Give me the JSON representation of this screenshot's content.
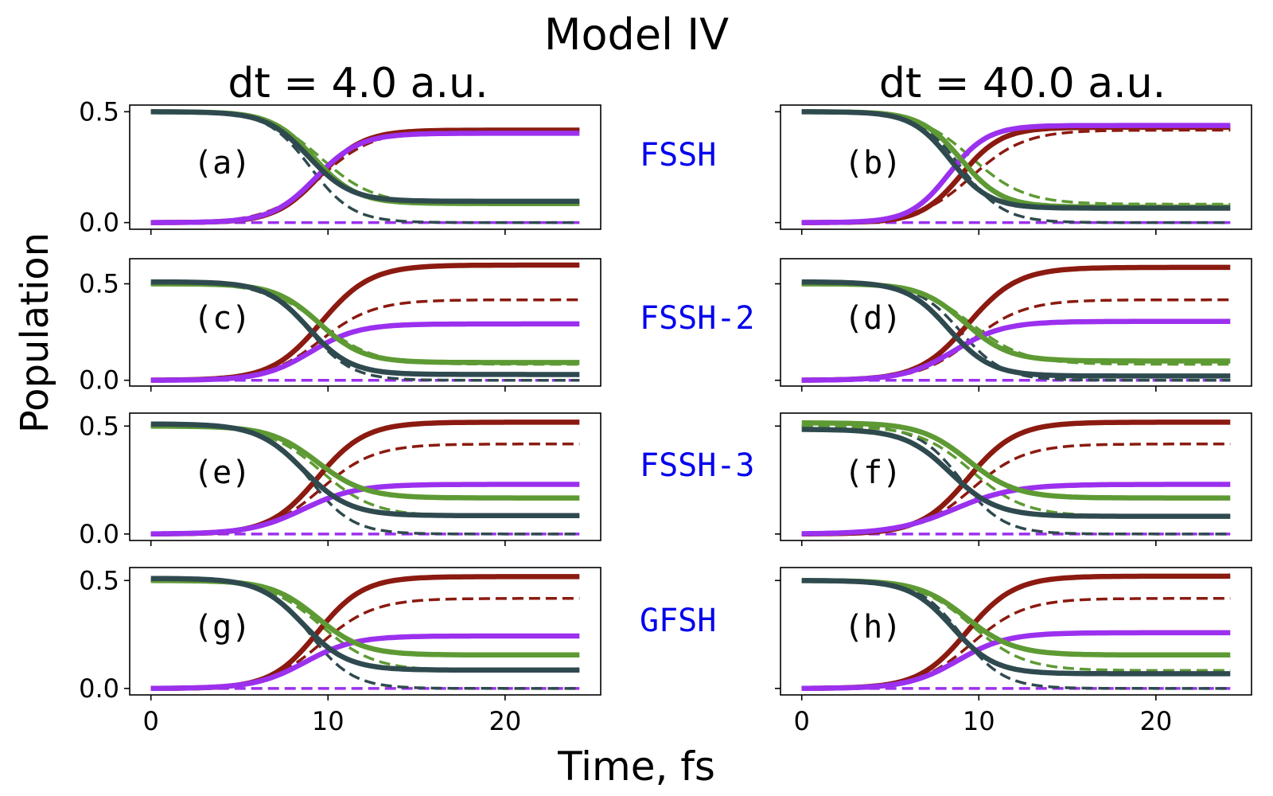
{
  "figure": {
    "title": "Model IV",
    "xlabel": "Time, fs",
    "ylabel": "Population",
    "columns": [
      "dt = 4.0 a.u.",
      "dt = 40.0 a.u."
    ],
    "method_labels": [
      "FSSH",
      "FSSH-2",
      "FSSH-3",
      "GFSH"
    ]
  },
  "colors": {
    "red": "#8b1a10",
    "purple": "#9b30ee",
    "green": "#5e9a34",
    "slate": "#2f4a4f",
    "method_label": "#0000ee"
  },
  "chart_data": [
    {
      "type": "line",
      "panel": "(a)",
      "method": "FSSH",
      "column": "dt = 4.0 a.u.",
      "xlim": [
        -1.2,
        25.4
      ],
      "ylim": [
        -0.03,
        0.53
      ],
      "xticks": [
        "0",
        "10",
        "20"
      ],
      "yticks": [
        "0.0",
        "0.5"
      ],
      "reference": {
        "red": [
          0,
          0.417
        ],
        "green": [
          0.5,
          0.083
        ],
        "purple": [
          0,
          0
        ],
        "slate": [
          0.5,
          0
        ]
      },
      "series": [
        {
          "color": "red",
          "style": "solid",
          "start": 0,
          "end": 0.417,
          "t0": 9.5,
          "tau": 1.25
        },
        {
          "color": "purple",
          "style": "solid",
          "start": 0,
          "end": 0.403,
          "t0": 9.3,
          "tau": 1.25
        },
        {
          "color": "green",
          "style": "solid",
          "start": 0.5,
          "end": 0.086,
          "t0": 9.2,
          "tau": 1.2
        },
        {
          "color": "slate",
          "style": "solid",
          "start": 0.5,
          "end": 0.096,
          "t0": 8.9,
          "tau": 1.2
        }
      ]
    },
    {
      "type": "line",
      "panel": "(b)",
      "method": "FSSH",
      "column": "dt = 40.0 a.u.",
      "xlim": [
        -1.2,
        25.4
      ],
      "ylim": [
        -0.03,
        0.53
      ],
      "xticks": [
        "0",
        "10",
        "20"
      ],
      "yticks": [
        "0.0",
        "0.5"
      ],
      "reference": {
        "red": [
          0,
          0.417
        ],
        "green": [
          0.5,
          0.083
        ],
        "purple": [
          0,
          0
        ],
        "slate": [
          0.5,
          0
        ]
      },
      "series": [
        {
          "color": "red",
          "style": "solid",
          "start": 0,
          "end": 0.43,
          "t0": 9.0,
          "tau": 1.15
        },
        {
          "color": "purple",
          "style": "solid",
          "start": 0,
          "end": 0.438,
          "t0": 8.3,
          "tau": 1.1
        },
        {
          "color": "green",
          "style": "solid",
          "start": 0.5,
          "end": 0.07,
          "t0": 9.0,
          "tau": 1.15
        },
        {
          "color": "slate",
          "style": "solid",
          "start": 0.5,
          "end": 0.065,
          "t0": 8.4,
          "tau": 1.1
        }
      ]
    },
    {
      "type": "line",
      "panel": "(c)",
      "method": "FSSH-2",
      "column": "dt = 4.0 a.u.",
      "xlim": [
        -1.2,
        25.4
      ],
      "ylim": [
        -0.03,
        0.63
      ],
      "xticks": [
        "0",
        "10",
        "20"
      ],
      "yticks": [
        "0.0",
        "0.5"
      ],
      "reference": {
        "red": [
          0,
          0.417
        ],
        "green": [
          0.5,
          0.083
        ],
        "purple": [
          0,
          0
        ],
        "slate": [
          0.5,
          0
        ]
      },
      "series": [
        {
          "color": "red",
          "style": "solid",
          "start": 0,
          "end": 0.597,
          "t0": 9.6,
          "tau": 1.4
        },
        {
          "color": "purple",
          "style": "solid",
          "start": 0,
          "end": 0.292,
          "t0": 9.0,
          "tau": 1.35
        },
        {
          "color": "green",
          "style": "solid",
          "start": 0.5,
          "end": 0.092,
          "t0": 9.5,
          "tau": 1.25
        },
        {
          "color": "slate",
          "style": "solid",
          "start": 0.51,
          "end": 0.03,
          "t0": 8.9,
          "tau": 1.2
        }
      ]
    },
    {
      "type": "line",
      "panel": "(d)",
      "method": "FSSH-2",
      "column": "dt = 40.0 a.u.",
      "xlim": [
        -1.2,
        25.4
      ],
      "ylim": [
        -0.03,
        0.63
      ],
      "xticks": [
        "0",
        "10",
        "20"
      ],
      "yticks": [
        "0.0",
        "0.5"
      ],
      "reference": {
        "red": [
          0,
          0.417
        ],
        "green": [
          0.5,
          0.083
        ],
        "purple": [
          0,
          0
        ],
        "slate": [
          0.5,
          0
        ]
      },
      "series": [
        {
          "color": "red",
          "style": "solid",
          "start": 0,
          "end": 0.585,
          "t0": 9.4,
          "tau": 1.4
        },
        {
          "color": "purple",
          "style": "solid",
          "start": 0,
          "end": 0.305,
          "t0": 8.6,
          "tau": 1.4
        },
        {
          "color": "green",
          "style": "solid",
          "start": 0.5,
          "end": 0.1,
          "t0": 9.2,
          "tau": 1.25
        },
        {
          "color": "slate",
          "style": "solid",
          "start": 0.51,
          "end": 0.022,
          "t0": 8.3,
          "tau": 1.2
        }
      ]
    },
    {
      "type": "line",
      "panel": "(e)",
      "method": "FSSH-3",
      "column": "dt = 4.0 a.u.",
      "xlim": [
        -1.2,
        25.4
      ],
      "ylim": [
        -0.03,
        0.56
      ],
      "xticks": [
        "0",
        "10",
        "20"
      ],
      "yticks": [
        "0.0",
        "0.5"
      ],
      "reference": {
        "red": [
          0,
          0.417
        ],
        "green": [
          0.5,
          0.083
        ],
        "purple": [
          0,
          0
        ],
        "slate": [
          0.5,
          0
        ]
      },
      "series": [
        {
          "color": "red",
          "style": "solid",
          "start": 0,
          "end": 0.518,
          "t0": 9.4,
          "tau": 1.35
        },
        {
          "color": "purple",
          "style": "solid",
          "start": 0,
          "end": 0.23,
          "t0": 8.6,
          "tau": 1.5
        },
        {
          "color": "green",
          "style": "solid",
          "start": 0.5,
          "end": 0.167,
          "t0": 9.4,
          "tau": 1.35
        },
        {
          "color": "slate",
          "style": "solid",
          "start": 0.51,
          "end": 0.085,
          "t0": 8.6,
          "tau": 1.3
        }
      ]
    },
    {
      "type": "line",
      "panel": "(f)",
      "method": "FSSH-3",
      "column": "dt = 40.0 a.u.",
      "xlim": [
        -1.2,
        25.4
      ],
      "ylim": [
        -0.03,
        0.56
      ],
      "xticks": [
        "0",
        "10",
        "20"
      ],
      "yticks": [
        "0.0",
        "0.5"
      ],
      "reference": {
        "red": [
          0,
          0.417
        ],
        "green": [
          0.5,
          0.083
        ],
        "purple": [
          0,
          0
        ],
        "slate": [
          0.5,
          0
        ]
      },
      "series": [
        {
          "color": "red",
          "style": "solid",
          "start": 0,
          "end": 0.518,
          "t0": 9.4,
          "tau": 1.35
        },
        {
          "color": "purple",
          "style": "solid",
          "start": 0,
          "end": 0.23,
          "t0": 8.6,
          "tau": 1.7
        },
        {
          "color": "green",
          "style": "solid",
          "start": 0.515,
          "end": 0.167,
          "t0": 9.4,
          "tau": 1.35
        },
        {
          "color": "slate",
          "style": "solid",
          "start": 0.485,
          "end": 0.082,
          "t0": 8.4,
          "tau": 1.3
        }
      ]
    },
    {
      "type": "line",
      "panel": "(g)",
      "method": "GFSH",
      "column": "dt = 4.0 a.u.",
      "xlim": [
        -1.2,
        25.4
      ],
      "ylim": [
        -0.03,
        0.56
      ],
      "xticks": [
        "0",
        "10",
        "20"
      ],
      "yticks": [
        "0.0",
        "0.5"
      ],
      "reference": {
        "red": [
          0,
          0.417
        ],
        "green": [
          0.5,
          0.083
        ],
        "purple": [
          0,
          0
        ],
        "slate": [
          0.5,
          0
        ]
      },
      "series": [
        {
          "color": "red",
          "style": "solid",
          "start": 0,
          "end": 0.518,
          "t0": 9.4,
          "tau": 1.3
        },
        {
          "color": "purple",
          "style": "solid",
          "start": 0,
          "end": 0.243,
          "t0": 8.7,
          "tau": 1.4
        },
        {
          "color": "green",
          "style": "solid",
          "start": 0.5,
          "end": 0.155,
          "t0": 9.4,
          "tau": 1.3
        },
        {
          "color": "slate",
          "style": "solid",
          "start": 0.51,
          "end": 0.085,
          "t0": 8.6,
          "tau": 1.25
        }
      ]
    },
    {
      "type": "line",
      "panel": "(h)",
      "method": "GFSH",
      "column": "dt = 40.0 a.u.",
      "xlim": [
        -1.2,
        25.4
      ],
      "ylim": [
        -0.03,
        0.56
      ],
      "xticks": [
        "0",
        "10",
        "20"
      ],
      "yticks": [
        "0.0",
        "0.5"
      ],
      "reference": {
        "red": [
          0,
          0.417
        ],
        "green": [
          0.5,
          0.083
        ],
        "purple": [
          0,
          0
        ],
        "slate": [
          0.5,
          0
        ]
      },
      "series": [
        {
          "color": "red",
          "style": "solid",
          "start": 0,
          "end": 0.52,
          "t0": 9.3,
          "tau": 1.35
        },
        {
          "color": "purple",
          "style": "solid",
          "start": 0,
          "end": 0.258,
          "t0": 8.8,
          "tau": 1.4
        },
        {
          "color": "green",
          "style": "solid",
          "start": 0.5,
          "end": 0.155,
          "t0": 9.3,
          "tau": 1.35
        },
        {
          "color": "slate",
          "style": "solid",
          "start": 0.5,
          "end": 0.068,
          "t0": 8.5,
          "tau": 1.2
        }
      ]
    }
  ]
}
